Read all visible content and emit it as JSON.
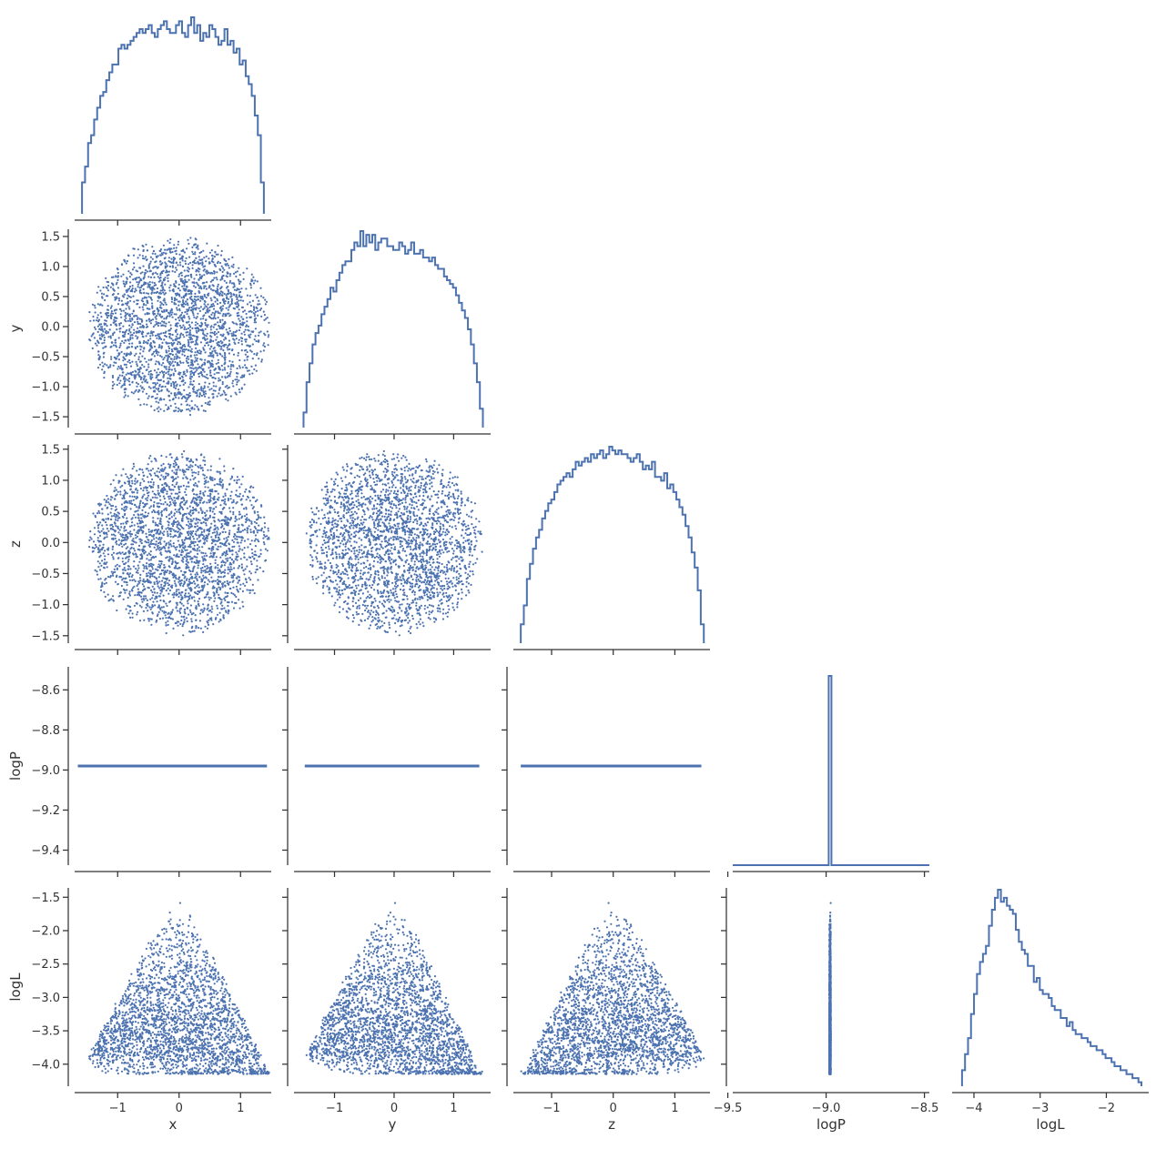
{
  "chart_data": {
    "type": "pairplot",
    "layout": "corner",
    "variables": [
      "x",
      "y",
      "z",
      "logP",
      "logL"
    ],
    "colors": {
      "series": "#4c72b0",
      "axis": "#333333",
      "background": "#ffffff"
    },
    "axes_ranges": {
      "x": [
        -1.7,
        1.5
      ],
      "y": [
        -1.68,
        1.62
      ],
      "z": [
        -1.62,
        1.57
      ],
      "logP": [
        -9.475,
        -8.475
      ],
      "logL": [
        -4.33,
        -1.36
      ]
    },
    "tick_values": {
      "x": [
        -1,
        0,
        1
      ],
      "y": [
        -1,
        0,
        1
      ],
      "z": [
        -1,
        0,
        1
      ],
      "logP": [
        -9.5,
        -9.0,
        -8.5
      ],
      "logL": [
        -4,
        -3,
        -2
      ]
    },
    "tick_labels": {
      "x": [
        "−1",
        "0",
        "1"
      ],
      "y": [
        "−1",
        "0",
        "1"
      ],
      "z": [
        "−1",
        "0",
        "1"
      ],
      "logP": [
        "−9.5",
        "−9.0",
        "−8.5"
      ],
      "logL": [
        "−4",
        "−3",
        "−2"
      ]
    },
    "y_tick_values": {
      "y": [
        -1.5,
        -1.0,
        -0.5,
        0.0,
        0.5,
        1.0,
        1.5
      ],
      "z": [
        -1.5,
        -1.0,
        -0.5,
        0.0,
        0.5,
        1.0,
        1.5
      ],
      "logP": [
        -9.4,
        -9.2,
        -9.0,
        -8.8,
        -8.6
      ],
      "logL": [
        -4.0,
        -3.5,
        -3.0,
        -2.5,
        -2.0,
        -1.5
      ]
    },
    "y_tick_labels": {
      "y": [
        "−1.5",
        "−1.0",
        "−0.5",
        "0.0",
        "0.5",
        "1.0",
        "1.5"
      ],
      "z": [
        "−1.5",
        "−1.0",
        "−0.5",
        "0.0",
        "0.5",
        "1.0",
        "1.5"
      ],
      "logP": [
        "−9.4",
        "−9.2",
        "−9.0",
        "−8.8",
        "−8.6"
      ],
      "logL": [
        "−4.0",
        "−3.5",
        "−3.0",
        "−2.5",
        "−2.0",
        "−1.5"
      ]
    },
    "logP_y_range": [
      -9.475,
      -8.485
    ],
    "logP_value": -8.98,
    "histograms": {
      "x": {
        "range": [
          -1.58,
          1.38
        ],
        "bins": 60,
        "counts": [
          8,
          12,
          18,
          20,
          24,
          27,
          30,
          31,
          34,
          36,
          38,
          38,
          42,
          43,
          42,
          43,
          44,
          45,
          46,
          47,
          46,
          47,
          48,
          46,
          45,
          47,
          48,
          49,
          47,
          46,
          46,
          48,
          49,
          46,
          45,
          48,
          50,
          46,
          48,
          44,
          46,
          45,
          48,
          47,
          45,
          43,
          44,
          47,
          43,
          44,
          41,
          42,
          38,
          39,
          35,
          33,
          30,
          25,
          20,
          8
        ]
      },
      "y": {
        "range": [
          -1.52,
          1.49
        ],
        "bins": 60,
        "counts": [
          4,
          12,
          17,
          22,
          25,
          27,
          30,
          32,
          34,
          37,
          36,
          39,
          41,
          43,
          44,
          44,
          47,
          49,
          48,
          52,
          48,
          51,
          49,
          51,
          47,
          49,
          50,
          50,
          48,
          48,
          47,
          47,
          49,
          48,
          46,
          47,
          49,
          46,
          46,
          47,
          45,
          45,
          44,
          45,
          43,
          42,
          42,
          40,
          39,
          38,
          37,
          35,
          33,
          31,
          29,
          26,
          22,
          17,
          12,
          5
        ]
      },
      "z": {
        "range": [
          -1.5,
          1.47
        ],
        "bins": 60,
        "counts": [
          5,
          10,
          17,
          21,
          25,
          28,
          30,
          33,
          35,
          37,
          38,
          40,
          42,
          43,
          44,
          45,
          44,
          46,
          48,
          47,
          48,
          49,
          48,
          50,
          49,
          50,
          51,
          49,
          50,
          52,
          51,
          50,
          51,
          50,
          50,
          49,
          48,
          49,
          50,
          48,
          46,
          47,
          46,
          48,
          44,
          44,
          43,
          45,
          41,
          42,
          40,
          38,
          36,
          34,
          31,
          28,
          24,
          20,
          14,
          5
        ]
      },
      "logL": {
        "range": [
          -4.18,
          -1.47
        ],
        "bins": 60,
        "counts": [
          4,
          8,
          12,
          18,
          23,
          28,
          31,
          33,
          35,
          40,
          44,
          47,
          49,
          46,
          47,
          45,
          44,
          43,
          39,
          36,
          34,
          33,
          30,
          30,
          26,
          27,
          24,
          23,
          23,
          22,
          20,
          19,
          19,
          17,
          17,
          15,
          16,
          14,
          13,
          13,
          12,
          12,
          11,
          10,
          10,
          9,
          9,
          8,
          7,
          7,
          6,
          5,
          5,
          4,
          4,
          3,
          3,
          2,
          2,
          1
        ]
      }
    },
    "logP_histogram": {
      "counts": [
        0,
        0,
        0,
        0,
        0,
        0,
        0,
        0,
        0,
        0,
        1,
        1,
        1,
        1,
        1,
        1,
        1,
        1,
        1,
        1,
        1,
        1,
        1,
        1,
        1,
        1,
        1,
        1,
        1,
        1
      ]
    }
  }
}
